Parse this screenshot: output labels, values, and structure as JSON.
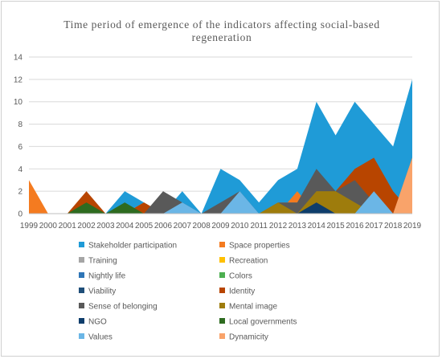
{
  "chart_data": {
    "type": "area",
    "title": "Time period of emergence of the indicators affecting social-based regeneration",
    "title_lines": [
      "Time period of emergence of the indicators affecting social-based",
      "regeneration"
    ],
    "xlabel": "",
    "ylabel": "",
    "ylim": [
      0,
      14
    ],
    "yticks": [
      "0",
      "2",
      "4",
      "6",
      "8",
      "10",
      "12",
      "14"
    ],
    "grid": true,
    "legend_position": "bottom",
    "x": [
      "1999",
      "2000",
      "2001",
      "2002",
      "2003",
      "2004",
      "2005",
      "2006",
      "2007",
      "2008",
      "2009",
      "2010",
      "2011",
      "2012",
      "2013",
      "2014",
      "2015",
      "2016",
      "2017",
      "2018",
      "2019"
    ],
    "series": [
      {
        "name": "Stakeholder participation",
        "color": "#1F9BD7",
        "values": [
          0,
          0,
          0,
          0,
          0,
          2,
          1,
          0,
          2,
          0,
          4,
          3,
          1,
          3,
          4,
          10,
          7,
          10,
          8,
          6,
          12
        ]
      },
      {
        "name": "Space properties",
        "color": "#F47B20",
        "values": [
          3,
          0,
          0,
          0,
          0,
          0,
          1,
          0,
          0,
          0,
          0,
          0,
          0,
          0,
          2,
          0,
          1,
          0,
          0,
          0,
          5
        ]
      },
      {
        "name": "Training",
        "color": "#A5A5A5",
        "values": [
          0,
          0,
          0,
          0,
          0,
          0,
          0,
          0,
          0,
          0,
          0,
          0,
          0,
          1,
          1,
          0,
          0,
          1,
          0,
          0,
          0
        ]
      },
      {
        "name": "Recreation",
        "color": "#FFC000",
        "values": [
          0,
          0,
          0,
          0,
          0,
          0,
          0,
          0,
          0,
          0,
          0,
          0,
          0,
          0,
          0,
          0,
          1,
          0,
          0,
          0,
          0
        ]
      },
      {
        "name": "Nightly life",
        "color": "#2E75B6",
        "values": [
          0,
          0,
          0,
          0,
          0,
          0,
          0,
          0,
          0,
          0,
          0,
          0,
          0,
          0,
          0,
          0,
          0,
          0,
          0,
          0,
          0
        ]
      },
      {
        "name": "Colors",
        "color": "#4CAF50",
        "values": [
          0,
          0,
          0,
          0,
          0,
          0,
          0,
          0,
          0,
          0,
          0,
          0,
          0,
          0,
          0,
          0,
          0,
          0,
          0,
          0,
          0
        ]
      },
      {
        "name": "Viability",
        "color": "#1F4E79",
        "values": [
          0,
          0,
          0,
          0,
          0,
          0,
          0,
          0,
          0,
          0,
          0,
          0,
          0,
          0,
          0,
          0,
          0,
          0,
          0,
          0,
          0
        ]
      },
      {
        "name": "Identity",
        "color": "#B84500",
        "values": [
          0,
          0,
          0,
          2,
          0,
          0,
          1,
          0,
          0,
          0,
          0,
          0,
          0,
          0,
          0,
          0,
          2,
          4,
          5,
          2,
          0
        ]
      },
      {
        "name": "Sense of belonging",
        "color": "#595959",
        "values": [
          0,
          0,
          0,
          0,
          0,
          0,
          0,
          2,
          1,
          0,
          1,
          2,
          0,
          1,
          1,
          4,
          2,
          3,
          1,
          0,
          0
        ]
      },
      {
        "name": "Mental image",
        "color": "#9E7C0C",
        "values": [
          0,
          0,
          0,
          0,
          0,
          0,
          0,
          0,
          0,
          0,
          0,
          0,
          0,
          1,
          0,
          2,
          2,
          1,
          0,
          0,
          0
        ]
      },
      {
        "name": "NGO",
        "color": "#0E3D6B",
        "values": [
          0,
          0,
          0,
          0,
          0,
          0,
          0,
          0,
          0,
          0,
          0,
          0,
          0,
          0,
          0,
          1,
          0,
          0,
          0,
          0,
          0
        ]
      },
      {
        "name": "Local governments",
        "color": "#2E6B20",
        "values": [
          0,
          0,
          0,
          1,
          0,
          1,
          0,
          0,
          0,
          0,
          0,
          0,
          0,
          0,
          0,
          0,
          0,
          0,
          0,
          0,
          0
        ]
      },
      {
        "name": "Values",
        "color": "#6BB6E6",
        "values": [
          0,
          0,
          0,
          0,
          0,
          0,
          0,
          0,
          1,
          0,
          0,
          2,
          0,
          0,
          0,
          0,
          0,
          0,
          2,
          0,
          0
        ]
      },
      {
        "name": "Dynamicity",
        "color": "#F9A36A",
        "values": [
          0,
          0,
          0,
          0,
          0,
          0,
          0,
          0,
          0,
          0,
          0,
          0,
          0,
          0,
          0,
          0,
          0,
          0,
          0,
          0,
          5
        ]
      }
    ]
  }
}
